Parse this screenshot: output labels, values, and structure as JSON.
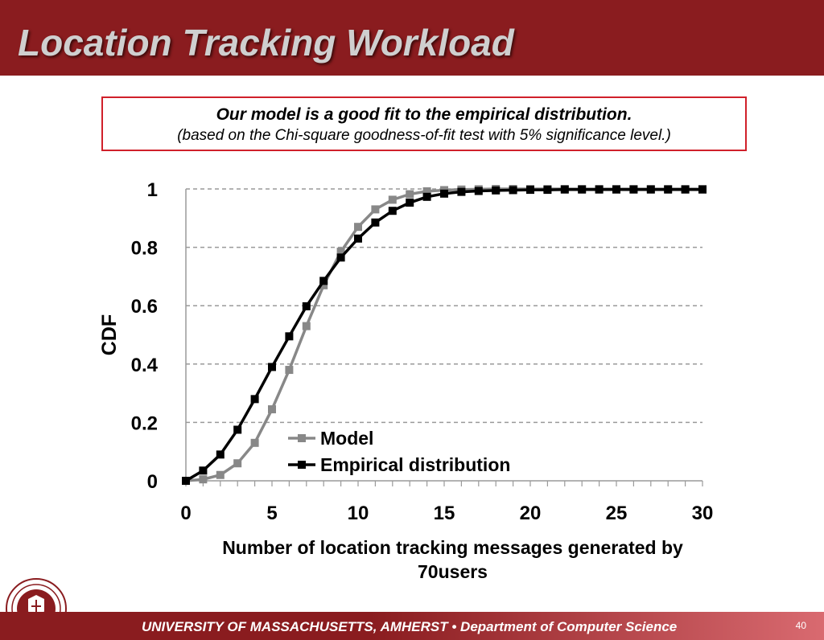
{
  "slide": {
    "title": "Location Tracking Workload",
    "callout_line1": "Our model is a good fit to the empirical distribution.",
    "callout_line2": "(based on the Chi-square goodness-of-fit test with 5% significance level.)",
    "xlabel_line1": "Number of location tracking messages generated by",
    "xlabel_line2": "70users",
    "footer": "UNIVERSITY OF MASSACHUSETTS, AMHERST  •  Department of Computer Science",
    "page_number": "40"
  },
  "colors": {
    "title_bar": "#8a1c1f",
    "model_series": "#888888",
    "empirical_series": "#000000",
    "callout_border": "#d0202a"
  },
  "chart_data": {
    "type": "line",
    "title": "",
    "xlabel": "",
    "ylabel": "CDF",
    "xlim": [
      0,
      30
    ],
    "ylim": [
      0,
      1
    ],
    "xticks": [
      0,
      5,
      10,
      15,
      20,
      25,
      30
    ],
    "yticks": [
      0,
      0.2,
      0.4,
      0.6,
      0.8,
      1
    ],
    "ytick_labels": [
      "0",
      "0.2",
      "0.4",
      "0.6",
      "0.8",
      "1"
    ],
    "grid": "horizontal-dashed",
    "legend_position": "bottom-center",
    "x": [
      0,
      1,
      2,
      3,
      4,
      5,
      6,
      7,
      8,
      9,
      10,
      11,
      12,
      13,
      14,
      15,
      16,
      17,
      18,
      19,
      20,
      21,
      22,
      23,
      24,
      25,
      26,
      27,
      28,
      29,
      30
    ],
    "series": [
      {
        "name": "Model",
        "color": "#888888",
        "marker": "square",
        "values": [
          0.0,
          0.005,
          0.02,
          0.06,
          0.13,
          0.245,
          0.38,
          0.53,
          0.67,
          0.785,
          0.87,
          0.93,
          0.963,
          0.982,
          0.992,
          0.996,
          0.998,
          0.999,
          1,
          1,
          1,
          1,
          1,
          1,
          1,
          1,
          1,
          1,
          1,
          1,
          1
        ]
      },
      {
        "name": "Empirical distribution",
        "color": "#000000",
        "marker": "square",
        "values": [
          0.0,
          0.035,
          0.09,
          0.175,
          0.28,
          0.39,
          0.495,
          0.598,
          0.685,
          0.765,
          0.83,
          0.885,
          0.925,
          0.953,
          0.973,
          0.984,
          0.99,
          0.993,
          0.995,
          0.996,
          0.997,
          0.997,
          0.998,
          0.998,
          0.998,
          0.998,
          0.998,
          0.998,
          0.998,
          0.998,
          0.998
        ]
      }
    ]
  }
}
